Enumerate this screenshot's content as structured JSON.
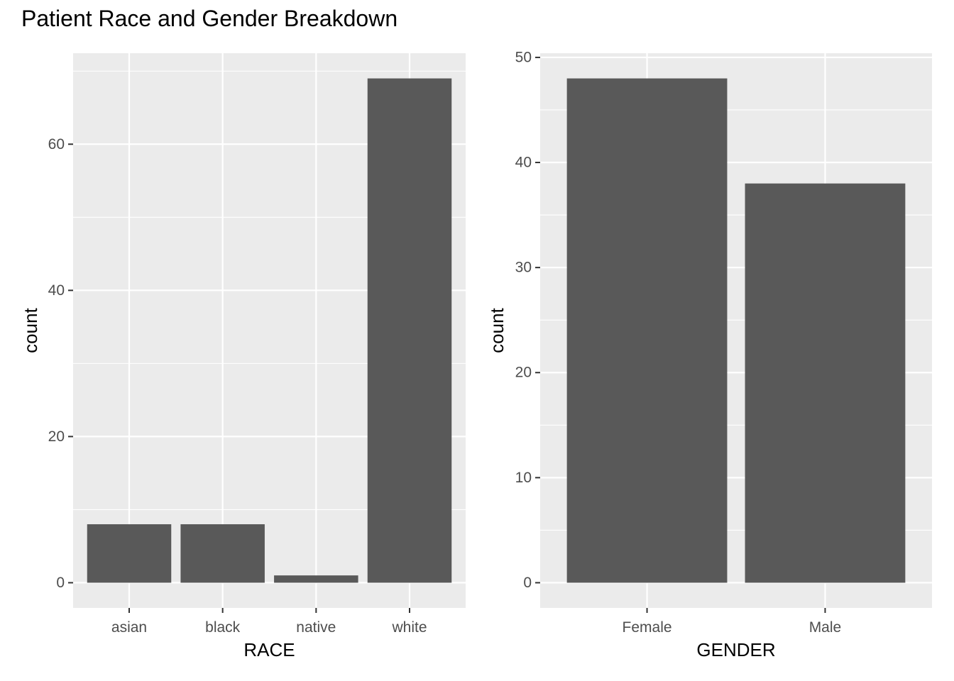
{
  "title": "Patient Race and Gender Breakdown",
  "chart_data": [
    {
      "type": "bar",
      "categories": [
        "asian",
        "black",
        "native",
        "white"
      ],
      "values": [
        8,
        8,
        1,
        69
      ],
      "xlabel": "RACE",
      "ylabel": "count",
      "ylim": [
        -3.45,
        72.45
      ],
      "yticks": [
        0,
        20,
        40,
        60
      ],
      "yticks_minor": [
        10,
        30,
        50,
        70
      ],
      "grid": true,
      "bar_color": "#595959",
      "panel_color": "#ebebeb",
      "grid_color": "#ffffff"
    },
    {
      "type": "bar",
      "categories": [
        "Female",
        "Male"
      ],
      "values": [
        48,
        38
      ],
      "xlabel": "GENDER",
      "ylabel": "count",
      "ylim": [
        -2.4,
        50.4
      ],
      "yticks": [
        0,
        10,
        20,
        30,
        40,
        50
      ],
      "yticks_minor": [
        5,
        15,
        25,
        35,
        45
      ],
      "grid": true,
      "bar_color": "#595959",
      "panel_color": "#ebebeb",
      "grid_color": "#ffffff"
    }
  ]
}
